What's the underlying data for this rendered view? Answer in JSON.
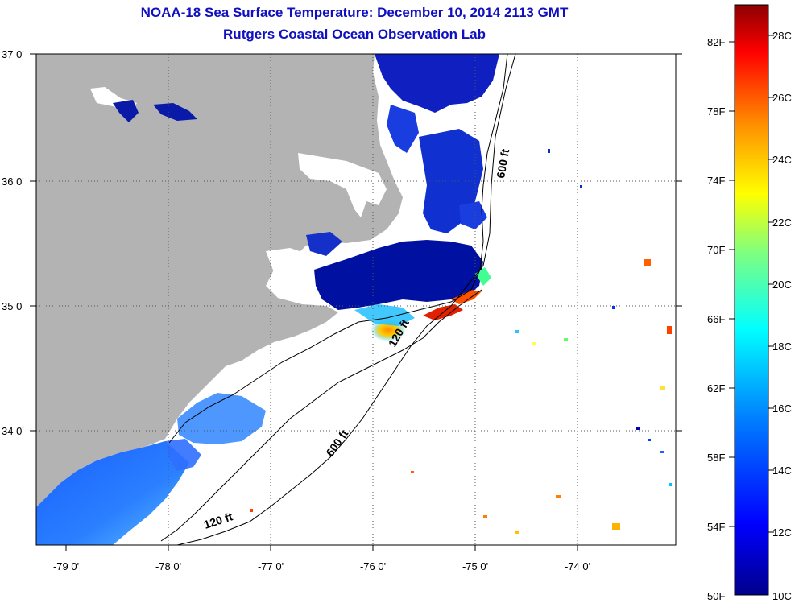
{
  "title": {
    "line1": "NOAA-18 Sea Surface Temperature:  December 10, 2014 2113 GMT",
    "line2": "Rutgers Coastal Ocean Observation Lab"
  },
  "map": {
    "longitude_labels": [
      "-79 0'",
      "-78 0'",
      "-77 0'",
      "-76 0'",
      "-75 0'",
      "-74 0'"
    ],
    "latitude_labels": [
      "37 0'",
      "36 0'",
      "35 0'",
      "34 0'"
    ],
    "contour_labels": [
      "600 ft",
      "120 ft",
      "600 ft",
      "120 ft"
    ]
  },
  "colorbar": {
    "fahrenheit_labels": [
      "82F",
      "78F",
      "74F",
      "70F",
      "66F",
      "62F",
      "58F",
      "54F",
      "50F"
    ],
    "celsius_labels": [
      "28C",
      "26C",
      "24C",
      "22C",
      "20C",
      "18C",
      "16C",
      "14C",
      "12C",
      "10C"
    ],
    "colors": [
      "#8b0000",
      "#ff0000",
      "#ff8c00",
      "#ffff00",
      "#7fff7f",
      "#00ffff",
      "#0080ff",
      "#0000ff",
      "#00008b"
    ]
  },
  "colors": {
    "title": "#1010c0",
    "land": "#b3b3b3",
    "grid": "#555555"
  }
}
